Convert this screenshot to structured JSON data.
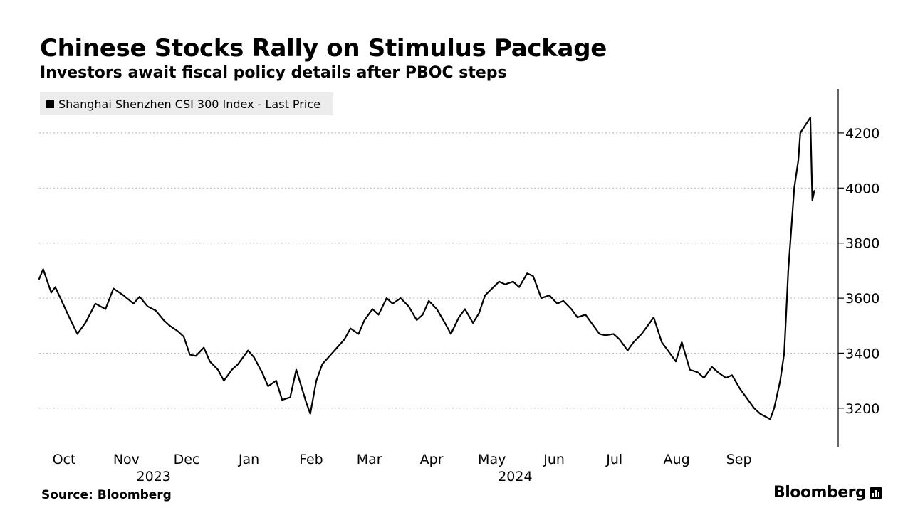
{
  "header": {
    "title": "Chinese Stocks Rally on Stimulus Package",
    "subtitle": "Investors await fiscal policy details after PBOC steps"
  },
  "footer": {
    "source": "Source: Bloomberg",
    "brand": "Bloomberg",
    "brand_icon": "bloomberg-chart-icon"
  },
  "chart_data": {
    "type": "line",
    "series": [
      {
        "name": "Shanghai Shenzhen CSI 300 Index - Last Price",
        "color": "#000000",
        "points": [
          [
            "2023-09-20",
            3670
          ],
          [
            "2023-09-22",
            3705
          ],
          [
            "2023-09-26",
            3620
          ],
          [
            "2023-09-28",
            3640
          ],
          [
            "2023-10-05",
            3530
          ],
          [
            "2023-10-09",
            3470
          ],
          [
            "2023-10-13",
            3510
          ],
          [
            "2023-10-18",
            3580
          ],
          [
            "2023-10-23",
            3560
          ],
          [
            "2023-10-27",
            3635
          ],
          [
            "2023-11-01",
            3610
          ],
          [
            "2023-11-06",
            3580
          ],
          [
            "2023-11-09",
            3605
          ],
          [
            "2023-11-13",
            3570
          ],
          [
            "2023-11-17",
            3555
          ],
          [
            "2023-11-21",
            3520
          ],
          [
            "2023-11-24",
            3500
          ],
          [
            "2023-11-28",
            3480
          ],
          [
            "2023-12-01",
            3460
          ],
          [
            "2023-12-04",
            3395
          ],
          [
            "2023-12-07",
            3390
          ],
          [
            "2023-12-11",
            3420
          ],
          [
            "2023-12-14",
            3370
          ],
          [
            "2023-12-18",
            3340
          ],
          [
            "2023-12-21",
            3300
          ],
          [
            "2023-12-25",
            3340
          ],
          [
            "2023-12-28",
            3360
          ],
          [
            "2024-01-02",
            3410
          ],
          [
            "2024-01-05",
            3385
          ],
          [
            "2024-01-09",
            3330
          ],
          [
            "2024-01-12",
            3280
          ],
          [
            "2024-01-16",
            3300
          ],
          [
            "2024-01-19",
            3230
          ],
          [
            "2024-01-23",
            3240
          ],
          [
            "2024-01-26",
            3340
          ],
          [
            "2024-01-31",
            3220
          ],
          [
            "2024-02-02",
            3180
          ],
          [
            "2024-02-05",
            3300
          ],
          [
            "2024-02-08",
            3360
          ],
          [
            "2024-02-19",
            3450
          ],
          [
            "2024-02-22",
            3490
          ],
          [
            "2024-02-26",
            3470
          ],
          [
            "2024-02-29",
            3520
          ],
          [
            "2024-03-04",
            3560
          ],
          [
            "2024-03-07",
            3540
          ],
          [
            "2024-03-11",
            3600
          ],
          [
            "2024-03-14",
            3580
          ],
          [
            "2024-03-18",
            3600
          ],
          [
            "2024-03-22",
            3570
          ],
          [
            "2024-03-26",
            3520
          ],
          [
            "2024-03-29",
            3540
          ],
          [
            "2024-04-01",
            3590
          ],
          [
            "2024-04-05",
            3560
          ],
          [
            "2024-04-09",
            3510
          ],
          [
            "2024-04-12",
            3470
          ],
          [
            "2024-04-16",
            3530
          ],
          [
            "2024-04-19",
            3560
          ],
          [
            "2024-04-23",
            3510
          ],
          [
            "2024-04-26",
            3545
          ],
          [
            "2024-04-29",
            3610
          ],
          [
            "2024-05-06",
            3660
          ],
          [
            "2024-05-09",
            3650
          ],
          [
            "2024-05-13",
            3660
          ],
          [
            "2024-05-16",
            3640
          ],
          [
            "2024-05-20",
            3690
          ],
          [
            "2024-05-23",
            3680
          ],
          [
            "2024-05-27",
            3600
          ],
          [
            "2024-05-31",
            3610
          ],
          [
            "2024-06-04",
            3580
          ],
          [
            "2024-06-07",
            3590
          ],
          [
            "2024-06-11",
            3560
          ],
          [
            "2024-06-14",
            3530
          ],
          [
            "2024-06-18",
            3540
          ],
          [
            "2024-06-21",
            3510
          ],
          [
            "2024-06-25",
            3470
          ],
          [
            "2024-06-28",
            3465
          ],
          [
            "2024-07-02",
            3470
          ],
          [
            "2024-07-05",
            3450
          ],
          [
            "2024-07-09",
            3410
          ],
          [
            "2024-07-12",
            3440
          ],
          [
            "2024-07-16",
            3470
          ],
          [
            "2024-07-19",
            3500
          ],
          [
            "2024-07-22",
            3530
          ],
          [
            "2024-07-26",
            3440
          ],
          [
            "2024-07-30",
            3400
          ],
          [
            "2024-08-02",
            3370
          ],
          [
            "2024-08-05",
            3440
          ],
          [
            "2024-08-09",
            3340
          ],
          [
            "2024-08-13",
            3330
          ],
          [
            "2024-08-16",
            3310
          ],
          [
            "2024-08-20",
            3350
          ],
          [
            "2024-08-23",
            3330
          ],
          [
            "2024-08-27",
            3310
          ],
          [
            "2024-08-30",
            3320
          ],
          [
            "2024-09-03",
            3270
          ],
          [
            "2024-09-06",
            3240
          ],
          [
            "2024-09-10",
            3200
          ],
          [
            "2024-09-13",
            3180
          ],
          [
            "2024-09-18",
            3160
          ],
          [
            "2024-09-20",
            3200
          ],
          [
            "2024-09-23",
            3300
          ],
          [
            "2024-09-24",
            3350
          ],
          [
            "2024-09-25",
            3400
          ],
          [
            "2024-09-26",
            3550
          ],
          [
            "2024-09-27",
            3700
          ],
          [
            "2024-09-30",
            4000
          ],
          [
            "2024-10-02",
            4100
          ],
          [
            "2024-10-03",
            4200
          ],
          [
            "2024-10-08",
            4256
          ],
          [
            "2024-10-09",
            3955
          ],
          [
            "2024-10-10",
            3990
          ]
        ]
      }
    ],
    "x_axis": {
      "type": "date",
      "ticks": [
        {
          "label": "Oct",
          "date": "2023-10-01"
        },
        {
          "label": "Nov",
          "date": "2023-11-01"
        },
        {
          "label": "Dec",
          "date": "2023-12-01"
        },
        {
          "label": "Jan",
          "date": "2024-01-01"
        },
        {
          "label": "Feb",
          "date": "2024-02-01"
        },
        {
          "label": "Mar",
          "date": "2024-03-01"
        },
        {
          "label": "Apr",
          "date": "2024-04-01"
        },
        {
          "label": "May",
          "date": "2024-05-01"
        },
        {
          "label": "Jun",
          "date": "2024-06-01"
        },
        {
          "label": "Jul",
          "date": "2024-07-01"
        },
        {
          "label": "Aug",
          "date": "2024-08-01"
        },
        {
          "label": "Sep",
          "date": "2024-09-01"
        }
      ],
      "year_labels": [
        {
          "label": "2023",
          "date": "2023-11-16"
        },
        {
          "label": "2024",
          "date": "2024-05-14"
        }
      ],
      "range": [
        "2023-09-20",
        "2024-10-13"
      ]
    },
    "y_axis": {
      "position": "right",
      "ticks": [
        3200,
        3400,
        3600,
        3800,
        4000,
        4200
      ],
      "range": [
        3060,
        4360
      ]
    },
    "grid": "horizontal-dotted",
    "legend": "top-left"
  }
}
